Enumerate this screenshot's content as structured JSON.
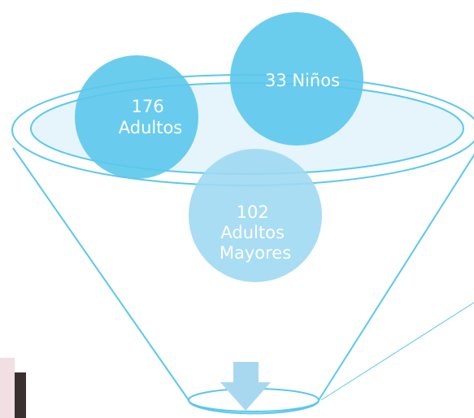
{
  "nodes": [
    {
      "lines": [
        "176",
        "Adultos"
      ]
    },
    {
      "lines": [
        "33 Niños"
      ]
    },
    {
      "lines": [
        "102",
        "Adultos",
        "Mayores"
      ]
    }
  ]
}
